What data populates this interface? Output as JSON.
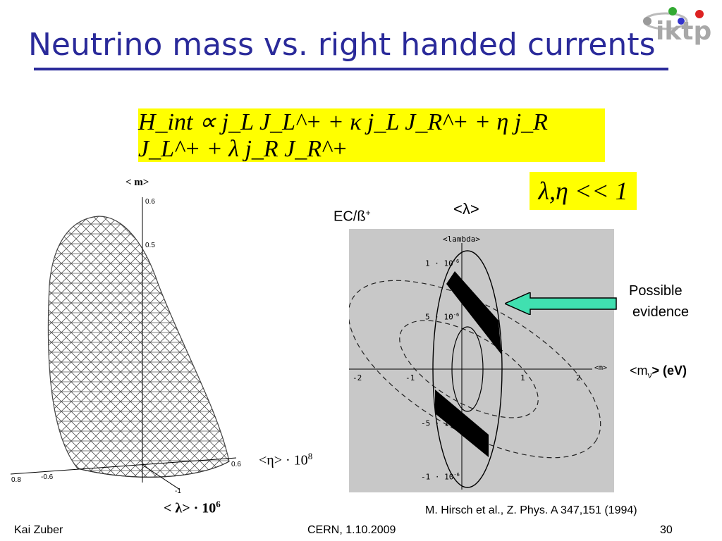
{
  "slide": {
    "title": "Neutrino mass vs. right handed currents",
    "logo_text": "iktp",
    "formula": "H_int ∝ j_L J_L^+ + κ j_L J_R^+ + η j_R J_L^+ + λ j_R J_R^+",
    "condition": "λ,η << 1",
    "footer_left": "Kai Zuber",
    "footer_center": "CERN, 1.10.2009",
    "page_number": "30",
    "reference": "M. Hirsch et al., Z. Phys. A 347,151 (1994)"
  },
  "left_plot": {
    "z_axis_label": "< m>",
    "z_ticks": [
      "0.6",
      "0.5"
    ],
    "x_axis_label": "<η> · 10",
    "x_axis_exp": "8",
    "y_axis_label": "< λ> · 10",
    "y_axis_exp": "6",
    "bottom_ticks": [
      "0.8",
      "-0.6"
    ],
    "right_tick": "0.6",
    "front_tick": "-1"
  },
  "right_plot": {
    "ec_label": "EC/ß",
    "ec_sup": "+",
    "lambda_label": "<λ>",
    "inner_label": "<lambda>",
    "y_ticks": [
      "1 · 10",
      "5 · 10",
      "-5 · 10",
      "-1 · 10"
    ],
    "y_tick_exp": "-6",
    "x_ticks": [
      "-2",
      "-1",
      "1",
      "2"
    ],
    "x_axis_inner": "<m>",
    "annotation_line1": "Possible",
    "annotation_line2": "evidence",
    "mass_label_prefix": "<m",
    "mass_label_sub": "ν",
    "mass_label_suffix": ">",
    "mass_unit": "(eV)"
  },
  "colors": {
    "title": "#2a2a9a",
    "highlight": "#ffff00",
    "arrow": "#40e0b0",
    "panel": "#c8c8c8"
  }
}
